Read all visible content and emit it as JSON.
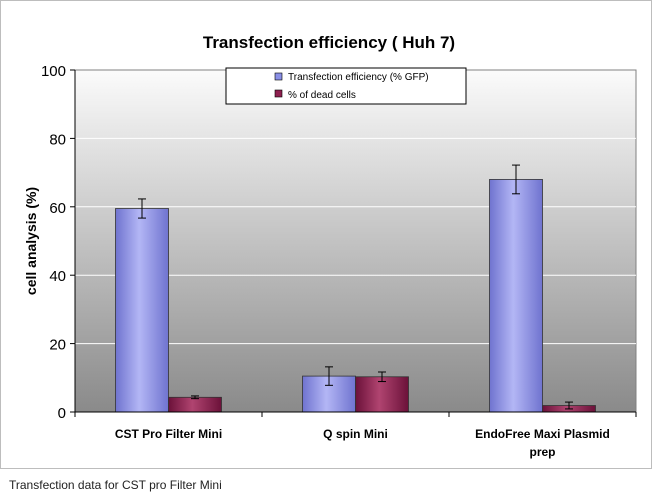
{
  "caption": "Transfection data for CST pro Filter Mini",
  "colors": {
    "series1": "#8a8fe6",
    "series2": "#8e1f4f",
    "plot_top": "#fbfbfb",
    "plot_bottom": "#8a8a8a"
  },
  "chart_data": {
    "type": "bar",
    "title": "Transfection efficiency ( Huh 7)",
    "xlabel": "",
    "ylabel": "cell analysis (%)",
    "ylim": [
      0,
      100
    ],
    "yticks": [
      0,
      20,
      40,
      60,
      80,
      100
    ],
    "grid": true,
    "legend_position": "top-center",
    "categories": [
      [
        "CST Pro Filter Mini"
      ],
      [
        "Q spin Mini"
      ],
      [
        "EndoFree Maxi Plasmid",
        "prep"
      ]
    ],
    "series": [
      {
        "name": "Transfection efficiency (% GFP)",
        "values": [
          59.5,
          10.5,
          68
        ],
        "error": [
          2.8,
          2.7,
          4.2
        ]
      },
      {
        "name": "% of dead cells",
        "values": [
          4.3,
          10.3,
          1.9
        ],
        "error": [
          0.4,
          1.4,
          1.0
        ]
      }
    ]
  }
}
